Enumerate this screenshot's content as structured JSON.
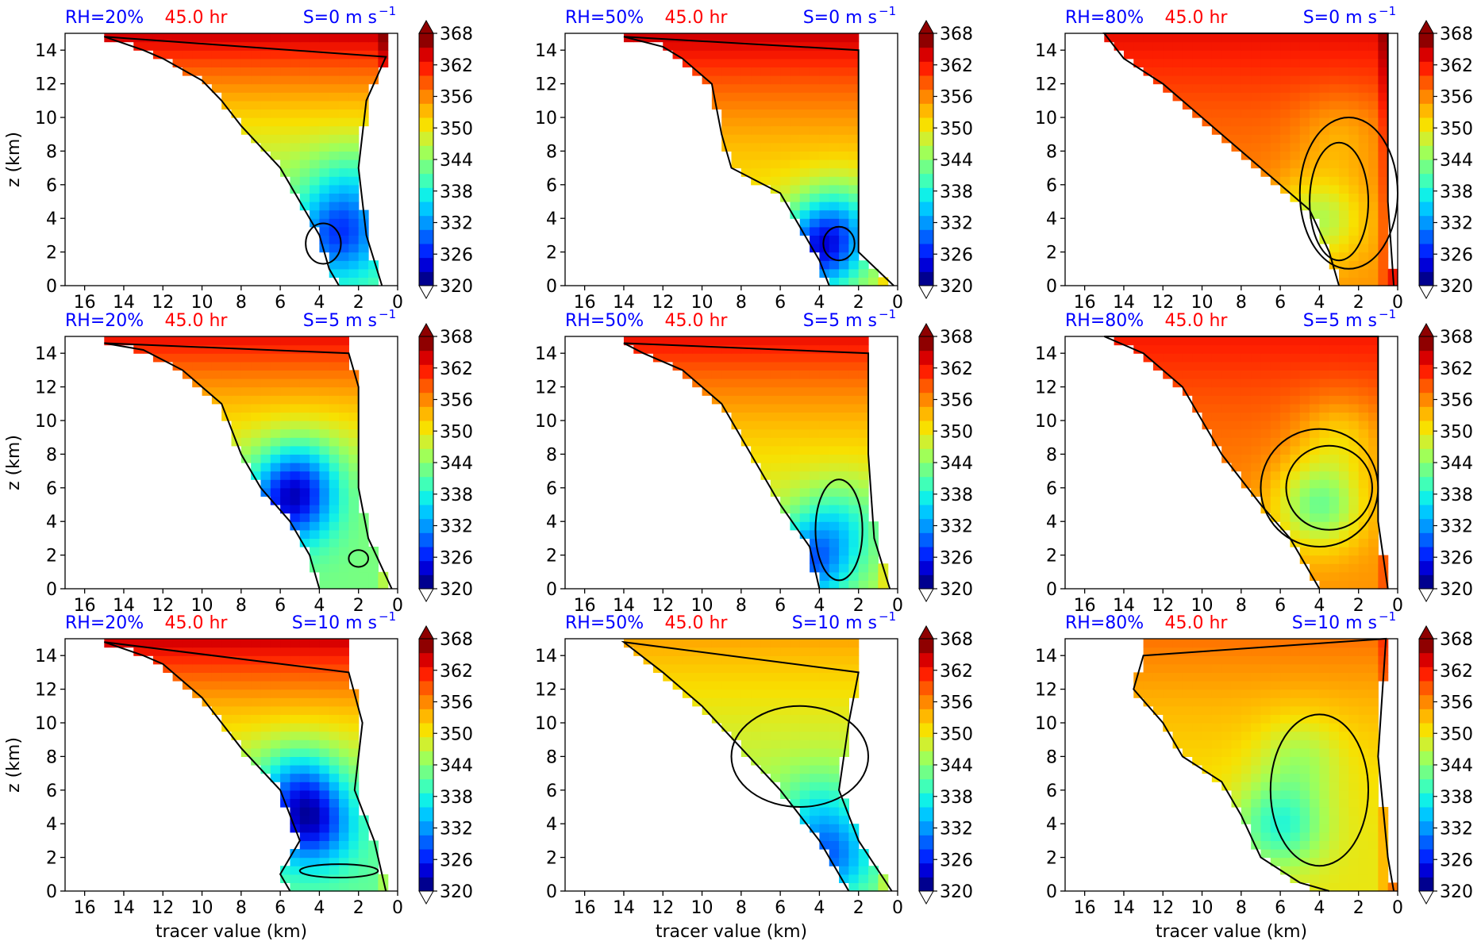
{
  "figure": {
    "colors": {
      "rh_title": "#0000ff",
      "time_title": "#ff0000",
      "shear_title": "#0000ff",
      "contour": "#000000",
      "frame": "#000000"
    },
    "colormap": [
      "#00008f",
      "#0000d8",
      "#0028ff",
      "#0060ff",
      "#0098ff",
      "#00c8ff",
      "#10f0e8",
      "#40ffb8",
      "#70ff88",
      "#a0ff58",
      "#d0f030",
      "#f8e000",
      "#ffb800",
      "#ff8800",
      "#ff5800",
      "#ff2000",
      "#d80000",
      "#8f0000"
    ]
  },
  "chart_data": [
    {
      "type": "heatmap",
      "rh": "RH=20%",
      "time": "45.0 hr",
      "shear": "S=0 m s",
      "shear_exp": "−1",
      "ylabel": "z (km)",
      "xlabel": "",
      "xlim": [
        17,
        0
      ],
      "ylim": [
        0,
        15
      ],
      "xticks": [
        "16",
        "14",
        "12",
        "10",
        "8",
        "6",
        "4",
        "2",
        "0"
      ],
      "yticks": [
        "0",
        "2",
        "4",
        "6",
        "8",
        "10",
        "12",
        "14"
      ],
      "colorbar": {
        "ticks": [
          "320",
          "326",
          "332",
          "338",
          "344",
          "350",
          "356",
          "362",
          "368"
        ],
        "range": [
          320,
          368
        ],
        "extend": "both"
      }
    },
    {
      "type": "heatmap",
      "rh": "RH=50%",
      "time": "45.0 hr",
      "shear": "S=0 m s",
      "shear_exp": "−1",
      "ylabel": "",
      "xlabel": "",
      "xlim": [
        17,
        0
      ],
      "ylim": [
        0,
        15
      ],
      "xticks": [
        "16",
        "14",
        "12",
        "10",
        "8",
        "6",
        "4",
        "2",
        "0"
      ],
      "yticks": [
        "0",
        "2",
        "4",
        "6",
        "8",
        "10",
        "12",
        "14"
      ],
      "colorbar": {
        "ticks": [
          "320",
          "326",
          "332",
          "338",
          "344",
          "350",
          "356",
          "362",
          "368"
        ],
        "range": [
          320,
          368
        ],
        "extend": "both"
      }
    },
    {
      "type": "heatmap",
      "rh": "RH=80%",
      "time": "45.0 hr",
      "shear": "S=0 m s",
      "shear_exp": "−1",
      "ylabel": "",
      "xlabel": "",
      "xlim": [
        17,
        0
      ],
      "ylim": [
        0,
        15
      ],
      "xticks": [
        "16",
        "14",
        "12",
        "10",
        "8",
        "6",
        "4",
        "2",
        "0"
      ],
      "yticks": [
        "0",
        "2",
        "4",
        "6",
        "8",
        "10",
        "12",
        "14"
      ],
      "colorbar": {
        "ticks": [
          "320",
          "326",
          "332",
          "338",
          "344",
          "350",
          "356",
          "362",
          "368"
        ],
        "range": [
          320,
          368
        ],
        "extend": "both"
      }
    },
    {
      "type": "heatmap",
      "rh": "RH=20%",
      "time": "45.0 hr",
      "shear": "S=5 m s",
      "shear_exp": "−1",
      "ylabel": "z (km)",
      "xlabel": "",
      "xlim": [
        17,
        0
      ],
      "ylim": [
        0,
        15
      ],
      "xticks": [
        "16",
        "14",
        "12",
        "10",
        "8",
        "6",
        "4",
        "2",
        "0"
      ],
      "yticks": [
        "0",
        "2",
        "4",
        "6",
        "8",
        "10",
        "12",
        "14"
      ],
      "colorbar": {
        "ticks": [
          "320",
          "326",
          "332",
          "338",
          "344",
          "350",
          "356",
          "362",
          "368"
        ],
        "range": [
          320,
          368
        ],
        "extend": "both"
      }
    },
    {
      "type": "heatmap",
      "rh": "RH=50%",
      "time": "45.0 hr",
      "shear": "S=5 m s",
      "shear_exp": "−1",
      "ylabel": "",
      "xlabel": "",
      "xlim": [
        17,
        0
      ],
      "ylim": [
        0,
        15
      ],
      "xticks": [
        "16",
        "14",
        "12",
        "10",
        "8",
        "6",
        "4",
        "2",
        "0"
      ],
      "yticks": [
        "0",
        "2",
        "4",
        "6",
        "8",
        "10",
        "12",
        "14"
      ],
      "colorbar": {
        "ticks": [
          "320",
          "326",
          "332",
          "338",
          "344",
          "350",
          "356",
          "362",
          "368"
        ],
        "range": [
          320,
          368
        ],
        "extend": "both"
      }
    },
    {
      "type": "heatmap",
      "rh": "RH=80%",
      "time": "45.0 hr",
      "shear": "S=5 m s",
      "shear_exp": "−1",
      "ylabel": "",
      "xlabel": "",
      "xlim": [
        17,
        0
      ],
      "ylim": [
        0,
        15
      ],
      "xticks": [
        "16",
        "14",
        "12",
        "10",
        "8",
        "6",
        "4",
        "2",
        "0"
      ],
      "yticks": [
        "0",
        "2",
        "4",
        "6",
        "8",
        "10",
        "12",
        "14"
      ],
      "colorbar": {
        "ticks": [
          "320",
          "326",
          "332",
          "338",
          "344",
          "350",
          "356",
          "362",
          "368"
        ],
        "range": [
          320,
          368
        ],
        "extend": "both"
      }
    },
    {
      "type": "heatmap",
      "rh": "RH=20%",
      "time": "45.0 hr",
      "shear": "S=10 m s",
      "shear_exp": "−1",
      "ylabel": "z (km)",
      "xlabel": "tracer value (km)",
      "xlim": [
        17,
        0
      ],
      "ylim": [
        0,
        15
      ],
      "xticks": [
        "16",
        "14",
        "12",
        "10",
        "8",
        "6",
        "4",
        "2",
        "0"
      ],
      "yticks": [
        "0",
        "2",
        "4",
        "6",
        "8",
        "10",
        "12",
        "14"
      ],
      "colorbar": {
        "ticks": [
          "320",
          "326",
          "332",
          "338",
          "344",
          "350",
          "356",
          "362",
          "368"
        ],
        "range": [
          320,
          368
        ],
        "extend": "both"
      }
    },
    {
      "type": "heatmap",
      "rh": "RH=50%",
      "time": "45.0 hr",
      "shear": "S=10 m s",
      "shear_exp": "−1",
      "ylabel": "",
      "xlabel": "tracer value (km)",
      "xlim": [
        17,
        0
      ],
      "ylim": [
        0,
        15
      ],
      "xticks": [
        "16",
        "14",
        "12",
        "10",
        "8",
        "6",
        "4",
        "2",
        "0"
      ],
      "yticks": [
        "0",
        "2",
        "4",
        "6",
        "8",
        "10",
        "12",
        "14"
      ],
      "colorbar": {
        "ticks": [
          "320",
          "326",
          "332",
          "338",
          "344",
          "350",
          "356",
          "362",
          "368"
        ],
        "range": [
          320,
          368
        ],
        "extend": "both"
      }
    },
    {
      "type": "heatmap",
      "rh": "RH=80%",
      "time": "45.0 hr",
      "shear": "S=10 m s",
      "shear_exp": "−1",
      "ylabel": "",
      "xlabel": "tracer value (km)",
      "xlim": [
        17,
        0
      ],
      "ylim": [
        0,
        15
      ],
      "xticks": [
        "16",
        "14",
        "12",
        "10",
        "8",
        "6",
        "4",
        "2",
        "0"
      ],
      "yticks": [
        "0",
        "2",
        "4",
        "6",
        "8",
        "10",
        "12",
        "14"
      ],
      "colorbar": {
        "ticks": [
          "320",
          "326",
          "332",
          "338",
          "344",
          "350",
          "356",
          "362",
          "368"
        ],
        "range": [
          320,
          368
        ],
        "extend": "both"
      }
    }
  ]
}
